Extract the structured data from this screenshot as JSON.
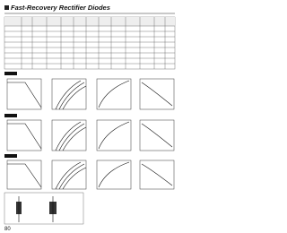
{
  "header": {
    "title": "Fast-Recovery Rectifier Diodes"
  },
  "footer": {
    "page": "80"
  }
}
